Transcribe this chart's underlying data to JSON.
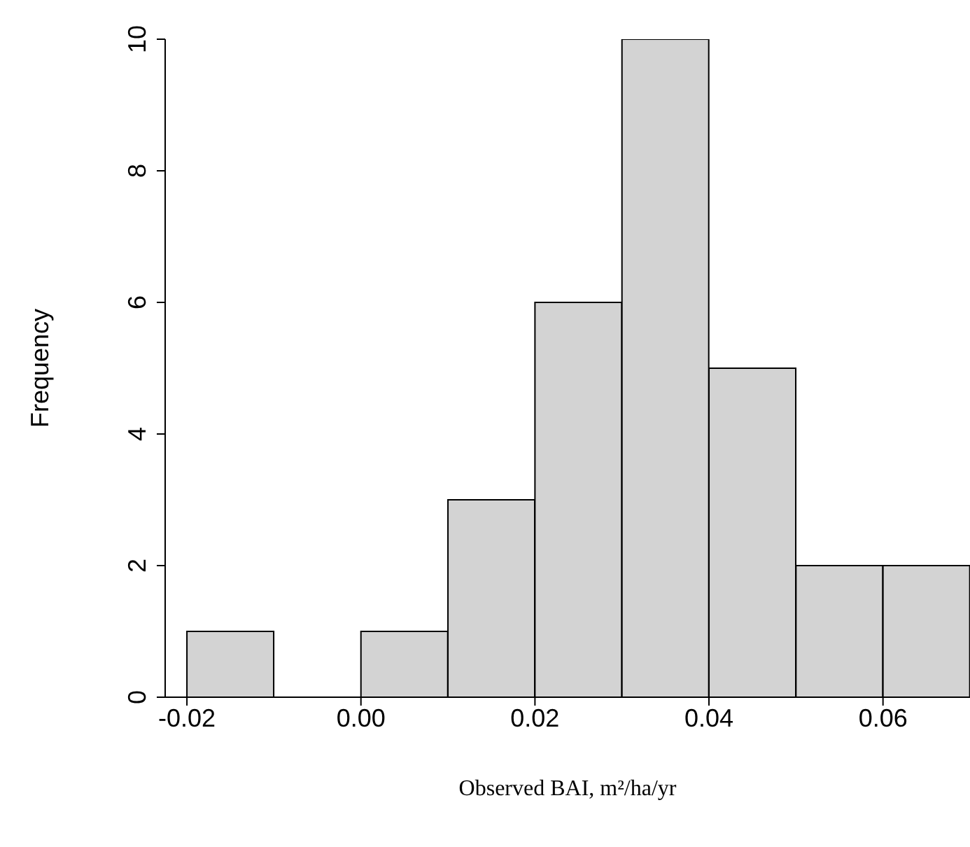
{
  "chart_data": {
    "type": "histogram",
    "xlabel": "Observed BAI, m²/ha/yr",
    "ylabel": "Frequency",
    "bins": [
      -0.02,
      -0.01,
      0.0,
      0.01,
      0.02,
      0.03,
      0.04,
      0.05,
      0.06,
      0.07
    ],
    "values": [
      1,
      0,
      1,
      3,
      6,
      10,
      5,
      2,
      2
    ],
    "color": "#d3d3d3",
    "xlim": [
      -0.0225,
      0.07
    ],
    "xticks": [
      {
        "value": -0.02,
        "label": "-0.02"
      },
      {
        "value": 0,
        "label": "0.00"
      },
      {
        "value": 0.02,
        "label": "0.02"
      },
      {
        "value": 0.04,
        "label": "0.04"
      },
      {
        "value": 0.06,
        "label": "0.06"
      }
    ],
    "ylim": [
      0,
      10
    ],
    "yticks": [
      0,
      2,
      4,
      6,
      8,
      10
    ],
    "grid": false
  }
}
